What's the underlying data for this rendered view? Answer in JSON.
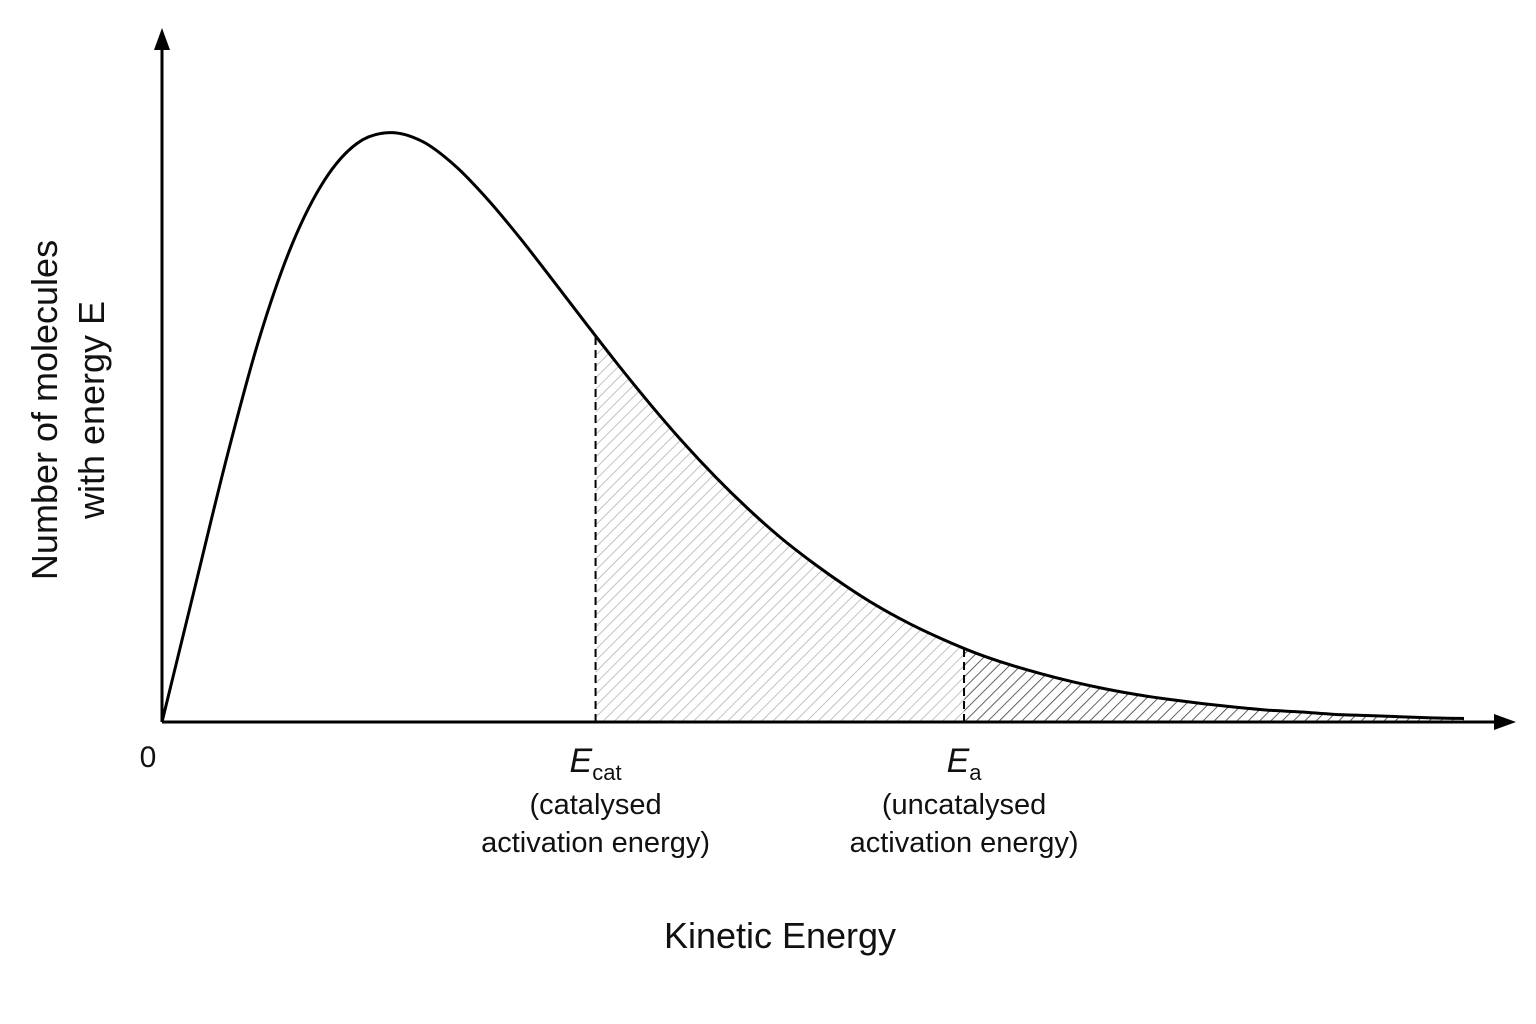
{
  "chart_data": {
    "type": "area",
    "title": "",
    "xlabel": "Kinetic Energy",
    "ylabel_lines": [
      "Number of molecules",
      "with energy E"
    ],
    "origin_label": "0",
    "x_range": [
      0,
      10
    ],
    "y_range": [
      0,
      1.13
    ],
    "grid": false,
    "legend": "none",
    "curve": {
      "x": [
        0,
        0.25,
        0.5,
        0.75,
        1.0,
        1.25,
        1.5,
        1.75,
        2.0,
        2.25,
        2.5,
        2.75,
        3.0,
        3.25,
        3.5,
        3.75,
        4.0,
        4.25,
        4.5,
        4.75,
        5.0,
        5.25,
        5.5,
        5.75,
        6.0,
        6.25,
        6.5,
        6.75,
        7.0,
        7.25,
        7.5,
        7.75,
        8.0,
        8.25,
        8.5,
        8.75,
        9.0,
        9.25,
        9.5,
        9.75,
        10.0
      ],
      "y": [
        0,
        0.226,
        0.451,
        0.653,
        0.811,
        0.92,
        0.982,
        1.0,
        0.985,
        0.944,
        0.887,
        0.821,
        0.75,
        0.678,
        0.607,
        0.539,
        0.475,
        0.416,
        0.362,
        0.313,
        0.27,
        0.231,
        0.196,
        0.166,
        0.14,
        0.117,
        0.098,
        0.082,
        0.068,
        0.056,
        0.046,
        0.038,
        0.031,
        0.025,
        0.02,
        0.017,
        0.013,
        0.011,
        0.009,
        0.007,
        0.006
      ]
    },
    "markers": [
      {
        "symbol": "E",
        "subscript": "cat",
        "x": 3.33,
        "annotation_lines": [
          "(catalysed",
          "activation energy)"
        ],
        "shade_color": "#b3b3b3"
      },
      {
        "symbol": "E",
        "subscript": "a",
        "x": 6.16,
        "annotation_lines": [
          "(uncatalysed",
          "activation energy)"
        ],
        "shade_color": "#3a3a3a"
      }
    ],
    "colors": {
      "curve": "#000000",
      "axis": "#000000"
    }
  }
}
